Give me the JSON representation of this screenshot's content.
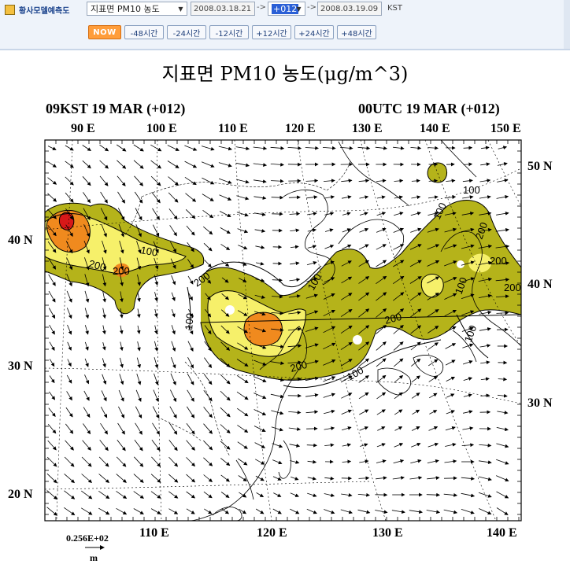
{
  "toolbar": {
    "app_title": "황사모델예측도",
    "variable_select": "지표면 PM10 농도",
    "start_time": "2008.03.18.21",
    "arrow1": "->",
    "offset_select": "+012",
    "arrow2": "->",
    "valid_time": "2008.03.19.09",
    "timezone": "KST",
    "buttons": [
      "NOW",
      "-48시간",
      "-24시간",
      "-12시간",
      "+12시간",
      "+24시간",
      "+48시간"
    ]
  },
  "figure": {
    "title": "지표면  PM10  농도(μg/m^3)",
    "subtitle_left": "09KST 19 MAR (+012)",
    "subtitle_right": "00UTC 19 MAR (+012)",
    "top_lon_labels": [
      "90 E",
      "100 E",
      "110 E",
      "120 E",
      "130 E",
      "140 E",
      "150 E"
    ],
    "bottom_lon_labels": [
      "110 E",
      "120 E",
      "130 E",
      "140 E"
    ],
    "left_lat_labels": [
      "40 N",
      "30 N",
      "20 N"
    ],
    "right_lat_labels": [
      "50 N",
      "40 N",
      "30 N"
    ],
    "contour_labels": [
      "100",
      "200",
      "200",
      "100",
      "200",
      "100",
      "200",
      "100",
      "100",
      "200",
      "200",
      "100",
      "100",
      "200",
      "100",
      "200"
    ],
    "reference_vector_value": "0.256E+02",
    "reference_vector_unit": "m"
  },
  "colors": {
    "level_100": "#b5b31a",
    "level_200": "#f6f06a",
    "level_300": "#f08a1e",
    "level_400": "#d81818",
    "ui_accent": "#2a5fd6"
  }
}
